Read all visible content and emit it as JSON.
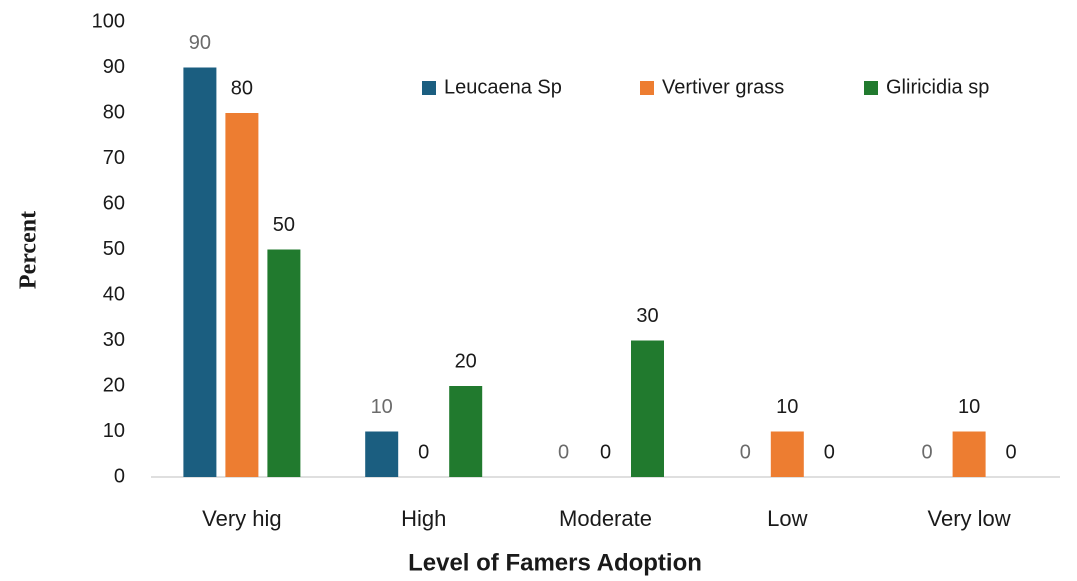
{
  "chart_data": {
    "type": "bar",
    "x_label": "Level of Famers Adoption",
    "y_label": "Percent",
    "categories": [
      "Very hig",
      "High",
      "Moderate",
      "Low",
      "Very low"
    ],
    "series": [
      {
        "name": "Leucaena Sp",
        "color": "#1b5e80",
        "label_color": "#6b6b6b",
        "values": [
          90,
          10,
          0,
          0,
          0
        ]
      },
      {
        "name": "Vertiver grass",
        "color": "#ed7d31",
        "label_color": "#1a1a1a",
        "values": [
          80,
          0,
          0,
          10,
          10
        ]
      },
      {
        "name": "Gliricidia sp",
        "color": "#217a2e",
        "label_color": "#1a1a1a",
        "values": [
          50,
          20,
          30,
          0,
          0
        ]
      }
    ],
    "ylim": [
      0,
      100
    ],
    "yticks": [
      0,
      10,
      20,
      30,
      40,
      50,
      60,
      70,
      80,
      90,
      100
    ],
    "grid": false,
    "legend": "top-right"
  }
}
